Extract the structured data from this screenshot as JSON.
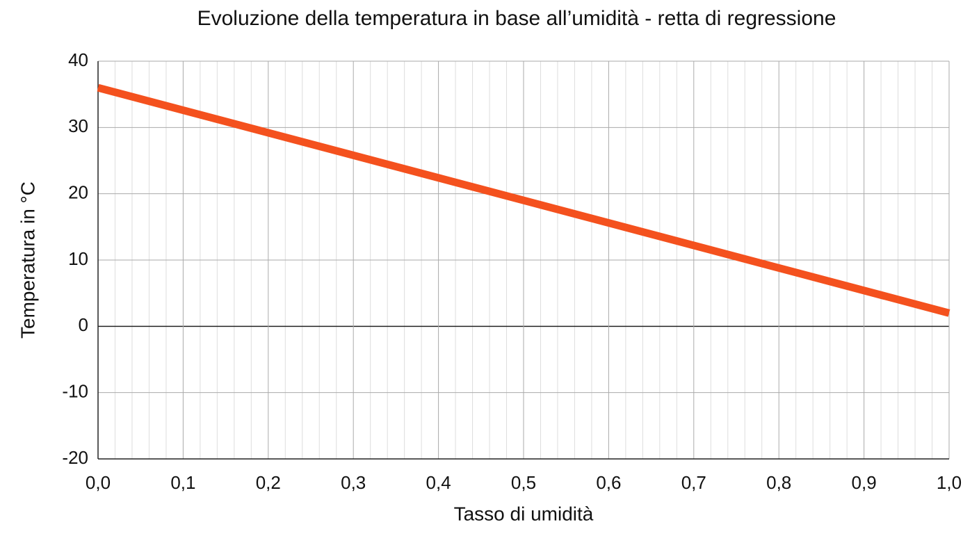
{
  "chart_data": {
    "type": "line",
    "title": "Evoluzione della temperatura in base all’umidità - retta di regressione",
    "xlabel": "Tasso di umidità",
    "ylabel": "Temperatura in °C",
    "x": [
      0,
      1
    ],
    "values": [
      36,
      2
    ],
    "color": "#f4511e",
    "xlim": [
      0,
      1
    ],
    "xticks": [
      {
        "value": 0,
        "label": "0,0"
      },
      {
        "value": 0.1,
        "label": "0,1"
      },
      {
        "value": 0.2,
        "label": "0,2"
      },
      {
        "value": 0.3,
        "label": "0,3"
      },
      {
        "value": 0.4,
        "label": "0,4"
      },
      {
        "value": 0.5,
        "label": "0,5"
      },
      {
        "value": 0.6,
        "label": "0,6"
      },
      {
        "value": 0.7,
        "label": "0,7"
      },
      {
        "value": 0.8,
        "label": "0,8"
      },
      {
        "value": 0.9,
        "label": "0,9"
      },
      {
        "value": 1,
        "label": "1,0"
      }
    ],
    "ylim": [
      -20,
      40
    ],
    "yticks": [
      -20,
      -10,
      0,
      10,
      20,
      30,
      40
    ],
    "grid": true
  }
}
